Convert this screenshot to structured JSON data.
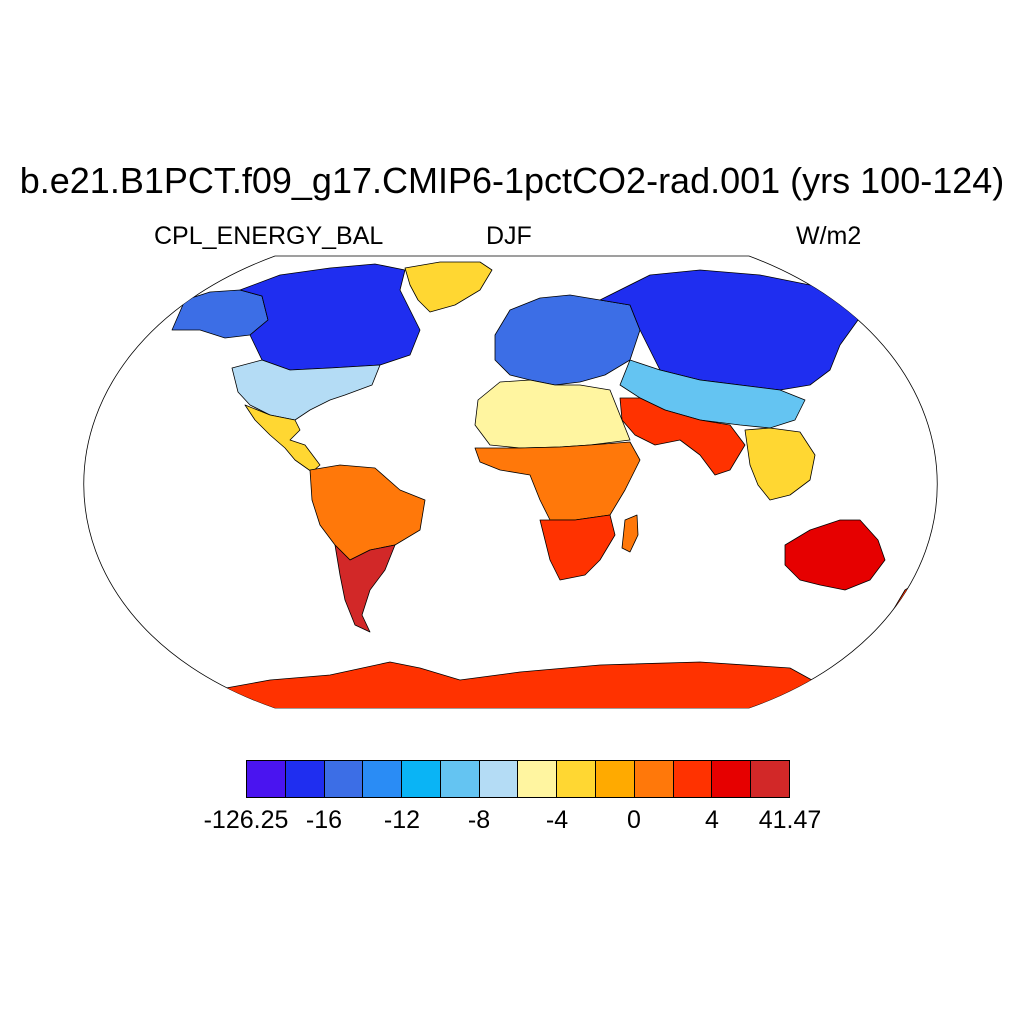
{
  "title": "b.e21.B1PCT.f09_g17.CMIP6-1pctCO2-rad.001 (yrs 100-124)",
  "variable": "CPL_ENERGY_BAL",
  "season": "DJF",
  "units": "W/m2",
  "colorbar": {
    "colors": [
      "#4a14f0",
      "#1f2ef0",
      "#3c6ee6",
      "#2a8cf5",
      "#0ab4f5",
      "#64c4f2",
      "#b4dcf5",
      "#fff5a0",
      "#ffd732",
      "#ffaa00",
      "#ff780a",
      "#ff3200",
      "#e60000",
      "#d22828"
    ],
    "labels": [
      "-126.25",
      "-16",
      "-12",
      "-8",
      "-4",
      "0",
      "4",
      "41.47"
    ]
  },
  "map_regions": [
    {
      "name": "Canada/North America",
      "color": "#1f2ef0"
    },
    {
      "name": "Alaska",
      "color": "#3c6ee6"
    },
    {
      "name": "United States",
      "color": "#b4dcf5"
    },
    {
      "name": "Mexico/Central America",
      "color": "#ffd732"
    },
    {
      "name": "Greenland",
      "color": "#ffd732"
    },
    {
      "name": "South America north",
      "color": "#ff780a"
    },
    {
      "name": "South America south",
      "color": "#d22828"
    },
    {
      "name": "Europe",
      "color": "#3c6ee6"
    },
    {
      "name": "Russia/Siberia",
      "color": "#1f2ef0"
    },
    {
      "name": "Central Asia",
      "color": "#64c4f2"
    },
    {
      "name": "North Africa",
      "color": "#fff5a0"
    },
    {
      "name": "Central Africa",
      "color": "#ff780a"
    },
    {
      "name": "Southern Africa",
      "color": "#ff3200"
    },
    {
      "name": "Middle East/India",
      "color": "#ffd732"
    },
    {
      "name": "Southeast Asia",
      "color": "#ffaa00"
    },
    {
      "name": "Australia",
      "color": "#e60000"
    },
    {
      "name": "Antarctica",
      "color": "#ff3200"
    }
  ]
}
